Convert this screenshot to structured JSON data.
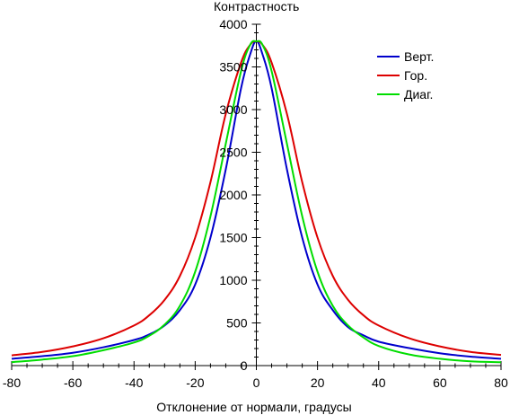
{
  "chart_data": {
    "type": "line",
    "title": "",
    "xlabel": "Отклонение от нормали, градусы",
    "ylabel": "Контрастность",
    "xlim": [
      -80,
      80
    ],
    "ylim": [
      0,
      4000
    ],
    "x_ticks": [
      "-80",
      "-60",
      "-40",
      "-20",
      "0",
      "20",
      "40",
      "60",
      "80"
    ],
    "y_ticks": [
      "0",
      "500",
      "1000",
      "1500",
      "2000",
      "2500",
      "3000",
      "3500",
      "4000"
    ],
    "grid": false,
    "legend_position": "top-right",
    "x": [
      -80,
      -70,
      -60,
      -50,
      -40,
      -35,
      -30,
      -25,
      -20,
      -15,
      -10,
      -5,
      -2,
      0,
      2,
      5,
      10,
      15,
      20,
      25,
      30,
      35,
      40,
      50,
      60,
      70,
      80
    ],
    "series": [
      {
        "name": "Верт.",
        "color": "#0000cc",
        "values": [
          80,
          110,
          150,
          215,
          300,
          365,
          470,
          650,
          950,
          1500,
          2300,
          3250,
          3650,
          3800,
          3650,
          3250,
          2300,
          1500,
          950,
          650,
          450,
          355,
          280,
          205,
          145,
          105,
          80
        ]
      },
      {
        "name": "Гор.",
        "color": "#dd0000",
        "values": [
          120,
          160,
          225,
          320,
          470,
          590,
          770,
          1050,
          1500,
          2150,
          2950,
          3550,
          3760,
          3800,
          3760,
          3550,
          2950,
          2150,
          1500,
          1050,
          770,
          590,
          470,
          320,
          225,
          160,
          125
        ]
      },
      {
        "name": "Диаг.",
        "color": "#00dd00",
        "values": [
          40,
          70,
          110,
          180,
          270,
          350,
          480,
          700,
          1100,
          1750,
          2600,
          3450,
          3760,
          3800,
          3760,
          3450,
          2600,
          1750,
          1100,
          700,
          470,
          330,
          230,
          130,
          80,
          50,
          40
        ]
      }
    ]
  }
}
